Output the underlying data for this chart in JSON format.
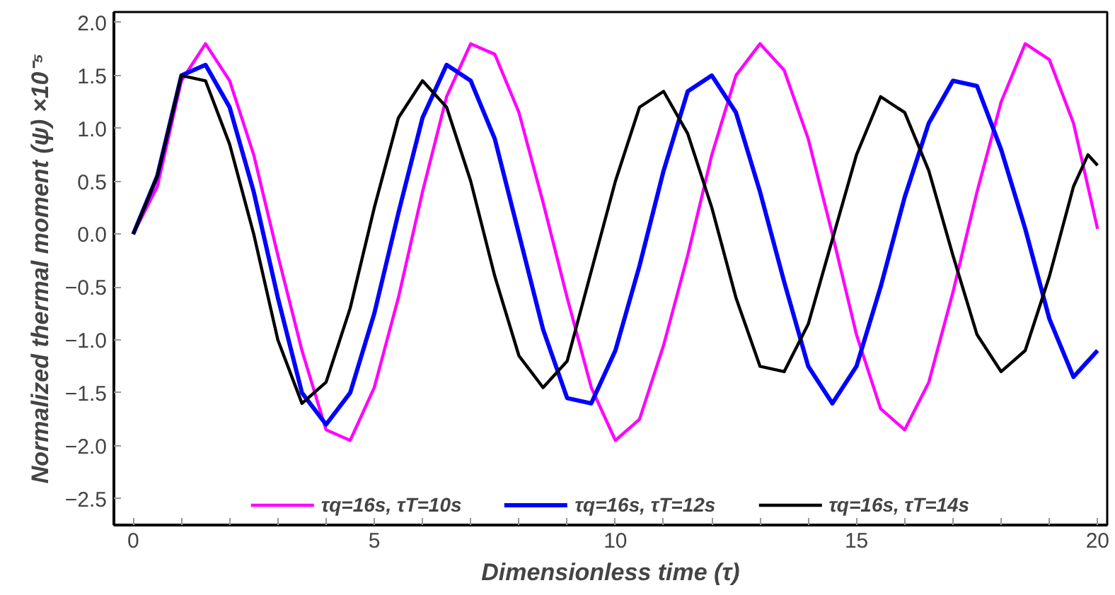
{
  "chart_data": {
    "type": "line",
    "xlabel": "Dimensionless time (τ)",
    "ylabel": "Normalized thermal moment (ψ) ×10⁻⁵",
    "x": [
      0,
      0.5,
      1,
      1.5,
      2,
      2.5,
      3,
      3.5,
      4,
      4.5,
      5,
      5.5,
      6,
      6.5,
      7,
      7.5,
      8,
      8.5,
      9,
      9.5,
      10,
      10.5,
      11,
      11.5,
      12,
      12.5,
      13,
      13.5,
      14,
      14.5,
      15,
      15.5,
      16,
      16.5,
      17,
      17.5,
      18,
      18.5,
      19,
      19.5,
      20
    ],
    "series": [
      {
        "name": "τq=16s, τT=10s",
        "color": "#ff00ff",
        "values": [
          0,
          0.45,
          1.45,
          1.8,
          1.45,
          0.75,
          -0.2,
          -1.1,
          -1.85,
          -1.95,
          -1.45,
          -0.6,
          0.4,
          1.3,
          1.8,
          1.7,
          1.15,
          0.3,
          -0.6,
          -1.45,
          -1.95,
          -1.75,
          -1.05,
          -0.2,
          0.75,
          1.5,
          1.8,
          1.55,
          0.9,
          0.0,
          -0.95,
          -1.65,
          -1.85,
          -1.4,
          -0.55,
          0.4,
          1.25,
          1.8,
          1.65,
          1.05,
          0.05
        ]
      },
      {
        "name": "τq=16s, τT=12s",
        "color": "#0000ff",
        "values": [
          0,
          0.55,
          1.5,
          1.6,
          1.2,
          0.4,
          -0.6,
          -1.5,
          -1.8,
          -1.5,
          -0.75,
          0.2,
          1.1,
          1.6,
          1.45,
          0.9,
          0.0,
          -0.9,
          -1.55,
          -1.6,
          -1.1,
          -0.3,
          0.6,
          1.35,
          1.5,
          1.15,
          0.4,
          -0.45,
          -1.25,
          -1.6,
          -1.25,
          -0.5,
          0.35,
          1.05,
          1.45,
          1.4,
          0.8,
          0.05,
          -0.8,
          -1.35,
          -1.1
        ]
      },
      {
        "name": "τq=16s, τT=14s",
        "color": "#000000",
        "x": [
          0,
          0.5,
          1,
          1.5,
          2,
          2.5,
          3,
          3.5,
          4,
          4.5,
          5,
          5.5,
          6,
          6.5,
          7,
          7.5,
          8,
          8.5,
          9,
          9.5,
          10,
          10.5,
          11,
          11.5,
          12,
          12.5,
          13,
          13.5,
          14,
          14.5,
          15,
          15.5,
          16,
          16.5,
          17,
          17.5,
          18,
          18.5,
          19,
          19.5,
          19.8,
          20
        ],
        "values": [
          0,
          0.55,
          1.5,
          1.45,
          0.85,
          0.0,
          -1.0,
          -1.6,
          -1.4,
          -0.7,
          0.25,
          1.1,
          1.45,
          1.2,
          0.5,
          -0.4,
          -1.15,
          -1.45,
          -1.2,
          -0.35,
          0.5,
          1.2,
          1.35,
          0.95,
          0.25,
          -0.6,
          -1.25,
          -1.3,
          -0.85,
          -0.05,
          0.75,
          1.3,
          1.15,
          0.6,
          -0.2,
          -0.95,
          -1.3,
          -1.1,
          -0.4,
          0.45,
          0.75,
          0.65
        ]
      }
    ],
    "xlim": [
      -0.4,
      20.2
    ],
    "ylim": [
      -2.75,
      2.1
    ],
    "xticks": [
      0,
      {
        "value": 1,
        "label": null
      },
      {
        "value": 2,
        "label": null
      },
      {
        "value": 3,
        "label": null
      },
      {
        "value": 4,
        "label": null
      },
      5,
      {
        "value": 6,
        "label": null
      },
      {
        "value": 7,
        "label": null
      },
      {
        "value": 8,
        "label": null
      },
      {
        "value": 9,
        "label": null
      },
      10,
      {
        "value": 11,
        "label": null
      },
      {
        "value": 12,
        "label": null
      },
      {
        "value": 13,
        "label": null
      },
      {
        "value": 14,
        "label": null
      },
      15,
      {
        "value": 16,
        "label": null
      },
      {
        "value": 17,
        "label": null
      },
      {
        "value": 18,
        "label": null
      },
      {
        "value": 19,
        "label": null
      },
      20
    ],
    "yticks": [
      {
        "value": 2,
        "label": "2.0"
      },
      1.5,
      {
        "value": 1,
        "label": "1.0"
      },
      0.5,
      {
        "value": 0,
        "label": "0.0"
      },
      {
        "value": -0.5,
        "label": "−0.5"
      },
      {
        "value": -1,
        "label": "−1.0"
      },
      {
        "value": -1.5,
        "label": "−1.5"
      },
      {
        "value": -2,
        "label": "−2.0"
      },
      {
        "value": -2.5,
        "label": "−2.5"
      }
    ],
    "grid": false,
    "legend": "bottom",
    "line_style": "solid",
    "marker": "none"
  }
}
